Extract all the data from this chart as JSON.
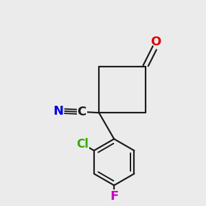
{
  "bg_color": "#ebebeb",
  "bond_color": "#1a1a1a",
  "bond_width": 1.6,
  "atoms": {
    "O": {
      "color": "#dd0000",
      "fontsize": 13
    },
    "N": {
      "color": "#0000dd",
      "fontsize": 13
    },
    "C": {
      "color": "#1a1a1a",
      "fontsize": 13
    },
    "Cl": {
      "color": "#33aa00",
      "fontsize": 12
    },
    "F": {
      "color": "#cc00cc",
      "fontsize": 13
    }
  }
}
